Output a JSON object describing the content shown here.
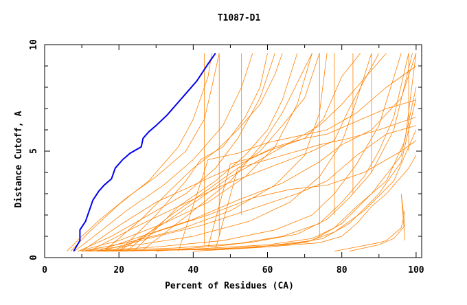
{
  "chart_data": {
    "type": "line",
    "title": "T1087-D1",
    "xlabel": "Percent of Residues (CA)",
    "ylabel": "Distance Cutoff, A",
    "xlim": [
      0,
      101.5
    ],
    "ylim": [
      0,
      10
    ],
    "x_ticks": [
      0,
      20,
      40,
      60,
      80,
      100
    ],
    "y_ticks": [
      0,
      5,
      10
    ],
    "grid": false,
    "colors": {
      "highlight": "#0000ee",
      "others": "#ff8000"
    },
    "highlight_series": {
      "points": [
        [
          7.8,
          0.3
        ],
        [
          9.5,
          0.8
        ],
        [
          9.5,
          1.3
        ],
        [
          11,
          1.7
        ],
        [
          12,
          2.2
        ],
        [
          13,
          2.7
        ],
        [
          14.5,
          3.1
        ],
        [
          16,
          3.4
        ],
        [
          18,
          3.7
        ],
        [
          19,
          4.2
        ],
        [
          21,
          4.6
        ],
        [
          23,
          4.9
        ],
        [
          26,
          5.2
        ],
        [
          26.5,
          5.6
        ],
        [
          28,
          5.9
        ],
        [
          30,
          6.2
        ],
        [
          33,
          6.7
        ],
        [
          35,
          7.1
        ],
        [
          38,
          7.7
        ],
        [
          41,
          8.3
        ],
        [
          44,
          9.1
        ],
        [
          46,
          9.6
        ]
      ]
    },
    "other_series": [
      [
        [
          6,
          0.3
        ],
        [
          10,
          1.0
        ],
        [
          15,
          1.8
        ],
        [
          22,
          2.8
        ],
        [
          30,
          3.8
        ],
        [
          38,
          5.0
        ],
        [
          43,
          6.5
        ],
        [
          45,
          8
        ],
        [
          47,
          9.6
        ]
      ],
      [
        [
          7,
          0.3
        ],
        [
          12,
          1.2
        ],
        [
          20,
          2.5
        ],
        [
          28,
          3.6
        ],
        [
          36,
          5.2
        ],
        [
          40,
          6.5
        ],
        [
          44,
          8.5
        ],
        [
          45,
          9.6
        ]
      ],
      [
        [
          8,
          0.3
        ],
        [
          14,
          1.1
        ],
        [
          22,
          2.2
        ],
        [
          32,
          3.4
        ],
        [
          40,
          4.6
        ],
        [
          48,
          6.2
        ],
        [
          53,
          8
        ],
        [
          56,
          9.6
        ]
      ],
      [
        [
          9,
          0.3
        ],
        [
          18,
          1.0
        ],
        [
          28,
          2.0
        ],
        [
          38,
          3.0
        ],
        [
          46,
          4.2
        ],
        [
          52,
          5.6
        ],
        [
          58,
          7.5
        ],
        [
          62,
          9.6
        ]
      ],
      [
        [
          9,
          0.3
        ],
        [
          20,
          0.8
        ],
        [
          32,
          1.6
        ],
        [
          44,
          2.6
        ],
        [
          54,
          3.8
        ],
        [
          62,
          5.2
        ],
        [
          68,
          7.2
        ],
        [
          72,
          9.6
        ]
      ],
      [
        [
          10,
          0.3
        ],
        [
          22,
          0.7
        ],
        [
          36,
          1.3
        ],
        [
          50,
          2.2
        ],
        [
          62,
          3.4
        ],
        [
          70,
          4.8
        ],
        [
          74,
          6.8
        ],
        [
          76,
          9.6
        ]
      ],
      [
        [
          10,
          0.3
        ],
        [
          25,
          0.6
        ],
        [
          40,
          1.0
        ],
        [
          55,
          1.7
        ],
        [
          66,
          2.6
        ],
        [
          74,
          3.8
        ],
        [
          80,
          5.4
        ],
        [
          84,
          7.4
        ],
        [
          88,
          9.6
        ]
      ],
      [
        [
          11,
          0.3
        ],
        [
          30,
          0.5
        ],
        [
          48,
          0.8
        ],
        [
          62,
          1.3
        ],
        [
          72,
          2.0
        ],
        [
          78,
          3.0
        ],
        [
          84,
          4.4
        ],
        [
          90,
          6.2
        ],
        [
          96,
          9.6
        ]
      ],
      [
        [
          12,
          0.3
        ],
        [
          35,
          0.45
        ],
        [
          55,
          0.7
        ],
        [
          68,
          1.1
        ],
        [
          76,
          1.8
        ],
        [
          82,
          2.8
        ],
        [
          88,
          4.0
        ],
        [
          94,
          6.0
        ],
        [
          99,
          9.6
        ]
      ],
      [
        [
          14,
          0.3
        ],
        [
          40,
          0.4
        ],
        [
          60,
          0.6
        ],
        [
          72,
          0.9
        ],
        [
          78,
          1.4
        ],
        [
          84,
          2.4
        ],
        [
          92,
          3.6
        ],
        [
          97,
          5.5
        ],
        [
          100,
          9.6
        ]
      ],
      [
        [
          16,
          0.3
        ],
        [
          45,
          0.4
        ],
        [
          65,
          0.6
        ],
        [
          75,
          0.9
        ],
        [
          82,
          1.6
        ],
        [
          90,
          3.0
        ],
        [
          96,
          4.5
        ],
        [
          100,
          7.5
        ]
      ],
      [
        [
          18,
          0.3
        ],
        [
          50,
          0.4
        ],
        [
          70,
          0.7
        ],
        [
          78,
          1.2
        ],
        [
          86,
          2.2
        ],
        [
          94,
          3.6
        ],
        [
          100,
          6.0
        ]
      ],
      [
        [
          20,
          0.3
        ],
        [
          55,
          0.45
        ],
        [
          72,
          0.8
        ],
        [
          80,
          1.6
        ],
        [
          88,
          3.0
        ],
        [
          96,
          4.8
        ],
        [
          100,
          8.0
        ]
      ],
      [
        [
          10,
          0.3
        ],
        [
          20,
          1.5
        ],
        [
          30,
          2.6
        ],
        [
          40,
          3.4
        ],
        [
          50,
          4.2
        ],
        [
          60,
          5.0
        ],
        [
          70,
          5.6
        ],
        [
          75,
          6.5
        ],
        [
          80,
          8.5
        ],
        [
          85,
          9.6
        ]
      ],
      [
        [
          12,
          0.3
        ],
        [
          24,
          1.4
        ],
        [
          36,
          2.4
        ],
        [
          48,
          3.4
        ],
        [
          60,
          4.2
        ],
        [
          72,
          5.0
        ],
        [
          78,
          5.5
        ],
        [
          82,
          7.0
        ],
        [
          90,
          9.6
        ]
      ],
      [
        [
          14,
          0.3
        ],
        [
          26,
          1.0
        ],
        [
          40,
          1.8
        ],
        [
          52,
          2.7
        ],
        [
          64,
          3.5
        ],
        [
          74,
          4.5
        ],
        [
          80,
          5.3
        ],
        [
          88,
          6.0
        ],
        [
          96,
          7.5
        ],
        [
          100,
          9.6
        ]
      ],
      [
        [
          15,
          0.3
        ],
        [
          28,
          0.9
        ],
        [
          42,
          1.5
        ],
        [
          56,
          2.3
        ],
        [
          68,
          3.0
        ],
        [
          76,
          3.6
        ],
        [
          84,
          4.8
        ],
        [
          92,
          5.8
        ],
        [
          100,
          6.2
        ]
      ],
      [
        [
          18,
          0.3
        ],
        [
          30,
          1.2
        ],
        [
          44,
          2.0
        ],
        [
          56,
          2.8
        ],
        [
          66,
          3.2
        ],
        [
          76,
          3.4
        ],
        [
          86,
          4.0
        ],
        [
          96,
          5.0
        ],
        [
          100,
          5.5
        ]
      ],
      [
        [
          20,
          0.3
        ],
        [
          32,
          1.6
        ],
        [
          42,
          2.8
        ],
        [
          50,
          3.8
        ],
        [
          58,
          4.6
        ],
        [
          66,
          5.4
        ],
        [
          74,
          6.2
        ],
        [
          80,
          7.2
        ],
        [
          86,
          8.4
        ],
        [
          92,
          9.6
        ]
      ],
      [
        [
          22,
          0.3
        ],
        [
          34,
          2.0
        ],
        [
          44,
          3.2
        ],
        [
          52,
          4.2
        ],
        [
          58,
          5.0
        ],
        [
          64,
          6.2
        ],
        [
          70,
          7.5
        ],
        [
          74,
          9.6
        ]
      ],
      [
        [
          24,
          0.3
        ],
        [
          36,
          2.4
        ],
        [
          46,
          3.6
        ],
        [
          54,
          4.8
        ],
        [
          60,
          6.0
        ],
        [
          64,
          7.4
        ],
        [
          68,
          9.6
        ]
      ],
      [
        [
          26,
          0.3
        ],
        [
          40,
          2.2
        ],
        [
          50,
          3.6
        ],
        [
          58,
          5.2
        ],
        [
          64,
          6.8
        ],
        [
          68,
          8.2
        ],
        [
          72,
          9.6
        ]
      ],
      [
        [
          16,
          0.3
        ],
        [
          26,
          1.8
        ],
        [
          34,
          3.2
        ],
        [
          40,
          4.2
        ],
        [
          46,
          5.0
        ],
        [
          52,
          6.0
        ],
        [
          58,
          7.2
        ],
        [
          62,
          8.6
        ],
        [
          64,
          9.6
        ]
      ],
      [
        [
          20,
          0.3
        ],
        [
          30,
          2.0
        ],
        [
          38,
          3.6
        ],
        [
          42,
          4.6
        ],
        [
          48,
          5.2
        ],
        [
          54,
          6.6
        ],
        [
          58,
          8.0
        ],
        [
          60,
          9.6
        ]
      ],
      [
        [
          30,
          0.3
        ],
        [
          50,
          0.6
        ],
        [
          64,
          1.0
        ],
        [
          74,
          1.6
        ],
        [
          80,
          2.6
        ],
        [
          86,
          3.8
        ],
        [
          90,
          5.0
        ],
        [
          94,
          6.6
        ],
        [
          98,
          9.6
        ]
      ],
      [
        [
          78,
          0.3
        ],
        [
          84,
          0.5
        ],
        [
          90,
          0.7
        ],
        [
          92,
          0.8
        ],
        [
          96,
          1.4
        ],
        [
          97,
          2.2
        ]
      ],
      [
        [
          82,
          0.3
        ],
        [
          90,
          0.6
        ],
        [
          94,
          0.9
        ],
        [
          97,
          1.5
        ],
        [
          96,
          3.0
        ],
        [
          97,
          0.8
        ]
      ],
      [
        [
          40,
          0.3
        ],
        [
          60,
          0.5
        ],
        [
          74,
          0.7
        ],
        [
          80,
          1.0
        ],
        [
          84,
          1.6
        ],
        [
          88,
          2.4
        ],
        [
          92,
          3.0
        ],
        [
          98,
          4.2
        ],
        [
          100,
          4.8
        ]
      ],
      [
        [
          44,
          0.5
        ],
        [
          50,
          4.4
        ],
        [
          56,
          4.7
        ],
        [
          62,
          5.2
        ],
        [
          70,
          5.6
        ],
        [
          76,
          5.8
        ],
        [
          84,
          6.4
        ],
        [
          92,
          7.0
        ],
        [
          100,
          7.4
        ]
      ],
      [
        [
          46,
          0.4
        ],
        [
          52,
          4.2
        ],
        [
          58,
          4.5
        ],
        [
          66,
          4.9
        ],
        [
          74,
          5.3
        ],
        [
          82,
          5.6
        ],
        [
          90,
          6.0
        ],
        [
          100,
          6.6
        ]
      ],
      [
        [
          36,
          0.3
        ],
        [
          44,
          4.6
        ],
        [
          52,
          4.9
        ],
        [
          60,
          5.4
        ],
        [
          68,
          5.7
        ],
        [
          76,
          6.0
        ],
        [
          84,
          6.8
        ],
        [
          92,
          8.0
        ],
        [
          100,
          9.0
        ]
      ],
      [
        [
          43,
          0.6
        ],
        [
          43,
          9.6
        ]
      ],
      [
        [
          47,
          1.0
        ],
        [
          47,
          9.6
        ]
      ],
      [
        [
          53,
          2.0
        ],
        [
          53,
          9.6
        ]
      ],
      [
        [
          74,
          1.0
        ],
        [
          74,
          9.6
        ]
      ],
      [
        [
          78,
          2.0
        ],
        [
          78,
          9.6
        ]
      ],
      [
        [
          83,
          3.0
        ],
        [
          83,
          9.6
        ]
      ],
      [
        [
          88,
          4.0
        ],
        [
          88,
          9.6
        ]
      ],
      [
        [
          98,
          5.0
        ],
        [
          98,
          9.6
        ]
      ]
    ]
  }
}
